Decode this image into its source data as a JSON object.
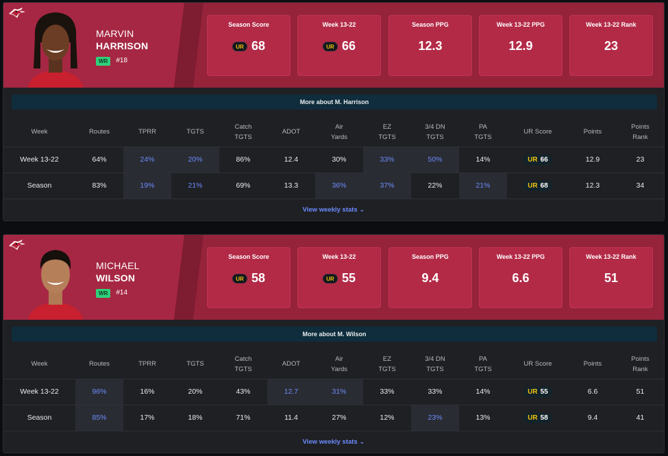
{
  "colors": {
    "team_primary": "#a62743",
    "stat_box": "#b32a47",
    "more_bar": "#0f2d3c",
    "highlight_text": "#6c8cff",
    "ur_gold": "#f1c40f"
  },
  "ur_icon_text": "UR",
  "players": [
    {
      "first_name": "MARVIN",
      "last_name": "HARRISON",
      "position": "WR",
      "jersey": "#18",
      "stats": [
        {
          "label": "Season Score",
          "value": "68",
          "ur": true
        },
        {
          "label": "Week 13-22",
          "value": "66",
          "ur": true
        },
        {
          "label": "Season PPG",
          "value": "12.3",
          "ur": false
        },
        {
          "label": "Week 13-22 PPG",
          "value": "12.9",
          "ur": false
        },
        {
          "label": "Week 13-22 Rank",
          "value": "23",
          "ur": false
        }
      ],
      "more_label": "More about M. Harrison",
      "rows": [
        {
          "week": "Week 13-22",
          "routes": "64%",
          "tprr": "24%",
          "tgts": "20%",
          "catch_tgts": "86%",
          "adot": "12.4",
          "air_yards": "30%",
          "ez_tgts": "33%",
          "dn34_tgts": "50%",
          "pa_tgts": "14%",
          "ur_score": "66",
          "points": "12.9",
          "points_rank": "23"
        },
        {
          "week": "Season",
          "routes": "83%",
          "tprr": "19%",
          "tgts": "21%",
          "catch_tgts": "69%",
          "adot": "13.3",
          "air_yards": "36%",
          "ez_tgts": "37%",
          "dn34_tgts": "22%",
          "pa_tgts": "21%",
          "ur_score": "68",
          "points": "12.3",
          "points_rank": "34"
        }
      ],
      "weekly_label": "View weekly stats"
    },
    {
      "first_name": "MICHAEL",
      "last_name": "WILSON",
      "position": "WR",
      "jersey": "#14",
      "stats": [
        {
          "label": "Season Score",
          "value": "58",
          "ur": true
        },
        {
          "label": "Week 13-22",
          "value": "55",
          "ur": true
        },
        {
          "label": "Season PPG",
          "value": "9.4",
          "ur": false
        },
        {
          "label": "Week 13-22 PPG",
          "value": "6.6",
          "ur": false
        },
        {
          "label": "Week 13-22 Rank",
          "value": "51",
          "ur": false
        }
      ],
      "more_label": "More about M. Wilson",
      "rows": [
        {
          "week": "Week 13-22",
          "routes": "96%",
          "tprr": "16%",
          "tgts": "20%",
          "catch_tgts": "43%",
          "adot": "12.7",
          "air_yards": "31%",
          "ez_tgts": "33%",
          "dn34_tgts": "33%",
          "pa_tgts": "14%",
          "ur_score": "55",
          "points": "6.6",
          "points_rank": "51"
        },
        {
          "week": "Season",
          "routes": "85%",
          "tprr": "17%",
          "tgts": "18%",
          "catch_tgts": "71%",
          "adot": "11.4",
          "air_yards": "27%",
          "ez_tgts": "12%",
          "dn34_tgts": "23%",
          "pa_tgts": "13%",
          "ur_score": "58",
          "points": "9.4",
          "points_rank": "41"
        }
      ],
      "weekly_label": "View weekly stats"
    }
  ],
  "columns": {
    "week": "Week",
    "routes": "Routes",
    "tprr": "TPRR",
    "tgts": "TGTS",
    "catch_1": "Catch",
    "catch_2": "TGTS",
    "adot": "ADOT",
    "air_1": "Air",
    "air_2": "Yards",
    "ez_1": "EZ",
    "ez_2": "TGTS",
    "dn_1": "3/4 DN",
    "dn_2": "TGTS",
    "pa_1": "PA",
    "pa_2": "TGTS",
    "ur_score": "UR Score",
    "points": "Points",
    "rank_1": "Points",
    "rank_2": "Rank"
  }
}
